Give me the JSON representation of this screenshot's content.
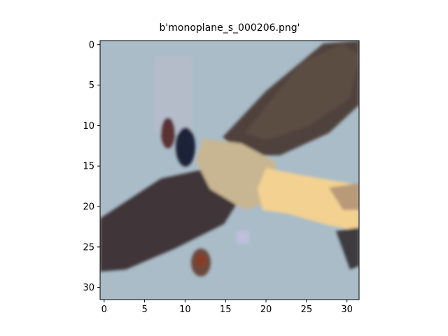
{
  "title": "b'monoplane_s_000206.png'",
  "image": {
    "subject": "monoplane aircraft in flight against a pale blue sky (low-resolution 32x32 thumbnail)",
    "grid_size": [
      32,
      32
    ],
    "sky_color": "#a9bcc8",
    "wing_color": "#4a3d3a",
    "fuselage_color": "#c9b89a",
    "highlight_color": "#f4d28e"
  },
  "axes": {
    "x_ticks": [
      "0",
      "5",
      "10",
      "15",
      "20",
      "25",
      "30"
    ],
    "y_ticks": [
      "0",
      "5",
      "10",
      "15",
      "20",
      "25",
      "30"
    ],
    "x_range": [
      -0.5,
      31.5
    ],
    "y_range": [
      -0.5,
      31.5
    ]
  }
}
